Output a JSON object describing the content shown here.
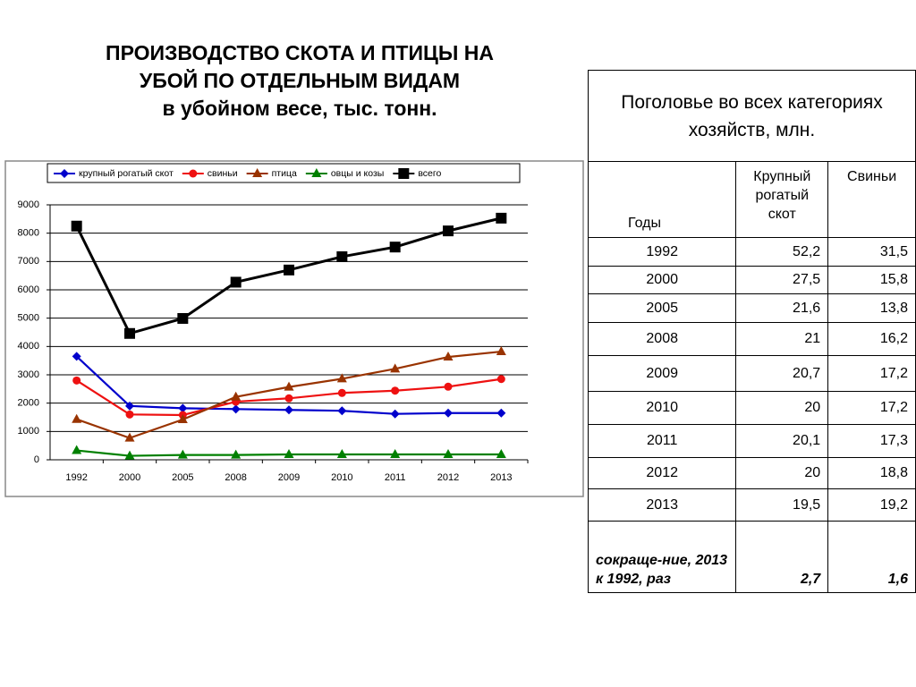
{
  "header": {
    "title_lines": [
      "ПРОИЗВОДСТВО СКОТА И ПТИЦЫ НА",
      "УБОЙ  ПО ОТДЕЛЬНЫМ ВИДАМ",
      "в убойном весе, тыс. тонн."
    ]
  },
  "chart_data": {
    "type": "line",
    "categories": [
      "1992",
      "2000",
      "2005",
      "2008",
      "2009",
      "2010",
      "2011",
      "2012",
      "2013"
    ],
    "series": [
      {
        "name": "крупный рогатый скот",
        "color": "#0000cc",
        "marker": "diamond",
        "values": [
          3650,
          1900,
          1820,
          1790,
          1760,
          1730,
          1620,
          1650,
          1650
        ]
      },
      {
        "name": "свиньи",
        "color": "#ee1111",
        "marker": "circle",
        "values": [
          2800,
          1600,
          1580,
          2050,
          2170,
          2360,
          2440,
          2580,
          2850
        ]
      },
      {
        "name": "птица",
        "color": "#993300",
        "marker": "triangle",
        "values": [
          1430,
          770,
          1420,
          2220,
          2570,
          2860,
          3210,
          3630,
          3820
        ]
      },
      {
        "name": "овцы и козы",
        "color": "#008000",
        "marker": "triangle",
        "values": [
          330,
          140,
          170,
          170,
          190,
          190,
          190,
          190,
          190
        ]
      },
      {
        "name": "всего",
        "color": "#000000",
        "marker": "square",
        "values": [
          8250,
          4460,
          4990,
          6270,
          6700,
          7170,
          7510,
          8080,
          8530
        ]
      }
    ],
    "ylim": [
      0,
      9000
    ],
    "yticks": [
      0,
      1000,
      2000,
      3000,
      4000,
      5000,
      6000,
      7000,
      8000,
      9000
    ],
    "grid": true,
    "legend": "top"
  },
  "table": {
    "caption": "Поголовье во всех категориях хозяйств, млн.",
    "columns": [
      "Годы",
      "Крупный рогатый скот",
      "Свиньи"
    ],
    "rows": [
      [
        "1992",
        "52,2",
        "31,5"
      ],
      [
        "2000",
        "27,5",
        "15,8"
      ],
      [
        "2005",
        "21,6",
        "13,8"
      ],
      [
        "2008",
        "21",
        "16,2"
      ],
      [
        "2009",
        "20,7",
        "17,2"
      ],
      [
        "2010",
        "20",
        "17,2"
      ],
      [
        "2011",
        "20,1",
        "17,3"
      ],
      [
        "2012",
        "20",
        "18,8"
      ],
      [
        "2013",
        "19,5",
        "19,2"
      ],
      [
        "сокраще-ние, 2013 к 1992, раз",
        "2,7",
        "1,6"
      ]
    ]
  }
}
